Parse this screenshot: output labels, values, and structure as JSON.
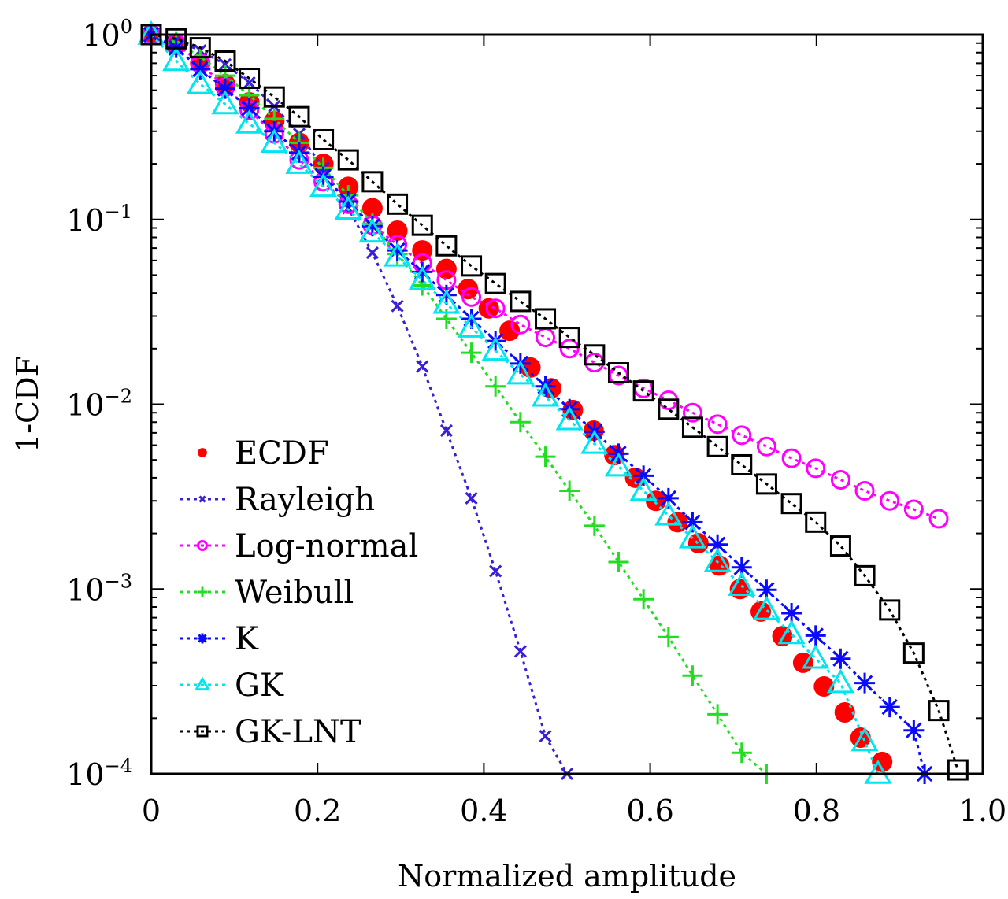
{
  "chart_data": {
    "type": "line",
    "title": "",
    "xlabel": "Normalized amplitude",
    "ylabel": "1-CDF",
    "xscale": "linear",
    "yscale": "log",
    "xlim": [
      0,
      1.0
    ],
    "ylim": [
      0.0001,
      1
    ],
    "x_ticks": [
      0,
      0.2,
      0.4,
      0.6,
      0.8,
      1.0
    ],
    "x_tick_labels": [
      "0",
      "0.2",
      "0.4",
      "0.6",
      "0.8",
      "1.0"
    ],
    "y_ticks": [
      1,
      0.1,
      0.01,
      0.001,
      0.0001
    ],
    "y_tick_labels": [
      {
        "base": "10",
        "exp": "0"
      },
      {
        "base": "10",
        "exp": "−1"
      },
      {
        "base": "10",
        "exp": "−2"
      },
      {
        "base": "10",
        "exp": "−3"
      },
      {
        "base": "10",
        "exp": "−4"
      }
    ],
    "grid": false,
    "legend_position": "bottom-left",
    "series": [
      {
        "name": "ECDF",
        "color": "#ff0000",
        "marker": "filled-circle",
        "line": "none",
        "x": [
          0,
          0.03,
          0.059,
          0.089,
          0.118,
          0.148,
          0.178,
          0.207,
          0.237,
          0.266,
          0.296,
          0.326,
          0.355,
          0.381,
          0.406,
          0.431,
          0.456,
          0.481,
          0.507,
          0.532,
          0.557,
          0.582,
          0.607,
          0.633,
          0.658,
          0.683,
          0.708,
          0.733,
          0.759,
          0.784,
          0.809,
          0.834,
          0.853,
          0.879
        ],
        "y": [
          1,
          0.88,
          0.7,
          0.54,
          0.43,
          0.34,
          0.26,
          0.2,
          0.15,
          0.115,
          0.087,
          0.068,
          0.054,
          0.042,
          0.033,
          0.025,
          0.0158,
          0.0122,
          0.0093,
          0.0072,
          0.0053,
          0.004,
          0.003,
          0.0023,
          0.00177,
          0.00134,
          0.001,
          0.000755,
          0.000556,
          0.000399,
          0.000297,
          0.000215,
          0.000157,
          0.000116
        ]
      },
      {
        "name": "Rayleigh",
        "color": "#3a1fd6",
        "marker": "x",
        "line": "dotted",
        "x": [
          0,
          0.03,
          0.059,
          0.089,
          0.118,
          0.148,
          0.178,
          0.207,
          0.237,
          0.266,
          0.296,
          0.326,
          0.355,
          0.385,
          0.414,
          0.444,
          0.474,
          0.5
        ],
        "y": [
          1,
          0.93,
          0.82,
          0.69,
          0.55,
          0.41,
          0.29,
          0.19,
          0.115,
          0.066,
          0.034,
          0.016,
          0.0072,
          0.0031,
          0.00125,
          0.00046,
          0.00016,
          0.0001
        ]
      },
      {
        "name": "Log-normal",
        "color": "#ff00ff",
        "marker": "open-circle",
        "line": "dotted",
        "x": [
          0,
          0.03,
          0.059,
          0.089,
          0.118,
          0.148,
          0.178,
          0.207,
          0.237,
          0.266,
          0.296,
          0.326,
          0.355,
          0.385,
          0.414,
          0.444,
          0.474,
          0.503,
          0.533,
          0.562,
          0.592,
          0.622,
          0.651,
          0.681,
          0.71,
          0.74,
          0.77,
          0.799,
          0.829,
          0.858,
          0.888,
          0.917,
          0.947
        ],
        "y": [
          1,
          0.9,
          0.7,
          0.52,
          0.39,
          0.29,
          0.21,
          0.16,
          0.121,
          0.093,
          0.073,
          0.058,
          0.047,
          0.038,
          0.033,
          0.027,
          0.023,
          0.02,
          0.0168,
          0.0143,
          0.0122,
          0.0105,
          0.009,
          0.0078,
          0.0068,
          0.0059,
          0.0051,
          0.0045,
          0.0039,
          0.0034,
          0.003,
          0.0027,
          0.0024
        ]
      },
      {
        "name": "Weibull",
        "color": "#22dd22",
        "marker": "plus",
        "line": "dotted",
        "x": [
          0,
          0.03,
          0.059,
          0.089,
          0.118,
          0.148,
          0.178,
          0.207,
          0.237,
          0.266,
          0.296,
          0.326,
          0.355,
          0.385,
          0.414,
          0.444,
          0.474,
          0.503,
          0.533,
          0.562,
          0.592,
          0.622,
          0.651,
          0.681,
          0.71,
          0.74
        ],
        "y": [
          1,
          0.91,
          0.76,
          0.6,
          0.47,
          0.35,
          0.26,
          0.19,
          0.135,
          0.095,
          0.065,
          0.044,
          0.029,
          0.019,
          0.0125,
          0.008,
          0.0052,
          0.0034,
          0.0022,
          0.0014,
          0.00088,
          0.00055,
          0.00034,
          0.00021,
          0.00013,
          0.0001
        ]
      },
      {
        "name": "K",
        "color": "#0a0aff",
        "marker": "star",
        "line": "dotted",
        "x": [
          0,
          0.03,
          0.059,
          0.089,
          0.118,
          0.148,
          0.178,
          0.207,
          0.237,
          0.266,
          0.296,
          0.326,
          0.355,
          0.385,
          0.414,
          0.444,
          0.474,
          0.503,
          0.533,
          0.562,
          0.592,
          0.622,
          0.651,
          0.681,
          0.71,
          0.74,
          0.77,
          0.799,
          0.829,
          0.858,
          0.888,
          0.917,
          0.93
        ],
        "y": [
          1,
          0.85,
          0.65,
          0.51,
          0.4,
          0.3,
          0.23,
          0.17,
          0.125,
          0.092,
          0.068,
          0.052,
          0.039,
          0.029,
          0.022,
          0.0166,
          0.0125,
          0.0094,
          0.0071,
          0.0054,
          0.0041,
          0.0031,
          0.0023,
          0.00174,
          0.00131,
          0.00099,
          0.00074,
          0.00056,
          0.00042,
          0.00031,
          0.00023,
          0.000172,
          0.0001
        ]
      },
      {
        "name": "GK",
        "color": "#00e5ee",
        "marker": "open-triangle",
        "line": "dotted",
        "x": [
          0,
          0.03,
          0.059,
          0.089,
          0.118,
          0.148,
          0.178,
          0.207,
          0.237,
          0.266,
          0.296,
          0.326,
          0.355,
          0.385,
          0.414,
          0.444,
          0.474,
          0.503,
          0.533,
          0.562,
          0.592,
          0.622,
          0.651,
          0.681,
          0.71,
          0.74,
          0.77,
          0.799,
          0.829,
          0.858,
          0.874
        ],
        "y": [
          1,
          0.72,
          0.54,
          0.42,
          0.33,
          0.26,
          0.2,
          0.15,
          0.113,
          0.085,
          0.063,
          0.047,
          0.035,
          0.026,
          0.0195,
          0.0145,
          0.011,
          0.0082,
          0.0061,
          0.0046,
          0.0034,
          0.0025,
          0.00188,
          0.0014,
          0.00104,
          0.00077,
          0.00057,
          0.00042,
          0.00031,
          0.00015,
          0.0001
        ]
      },
      {
        "name": "GK-LNT",
        "color": "#000000",
        "marker": "open-square",
        "line": "dotted",
        "x": [
          0,
          0.03,
          0.059,
          0.089,
          0.118,
          0.148,
          0.178,
          0.207,
          0.237,
          0.266,
          0.296,
          0.326,
          0.355,
          0.385,
          0.414,
          0.444,
          0.474,
          0.503,
          0.533,
          0.562,
          0.592,
          0.622,
          0.651,
          0.681,
          0.71,
          0.74,
          0.77,
          0.799,
          0.829,
          0.858,
          0.888,
          0.917,
          0.947,
          0.97
        ],
        "y": [
          1,
          0.95,
          0.85,
          0.72,
          0.58,
          0.46,
          0.36,
          0.27,
          0.21,
          0.16,
          0.121,
          0.093,
          0.072,
          0.056,
          0.045,
          0.036,
          0.029,
          0.023,
          0.0185,
          0.0148,
          0.0118,
          0.0094,
          0.0075,
          0.0059,
          0.0047,
          0.0037,
          0.0029,
          0.0023,
          0.00171,
          0.00118,
          0.00077,
          0.00045,
          0.00022,
          0.000105
        ]
      }
    ]
  }
}
